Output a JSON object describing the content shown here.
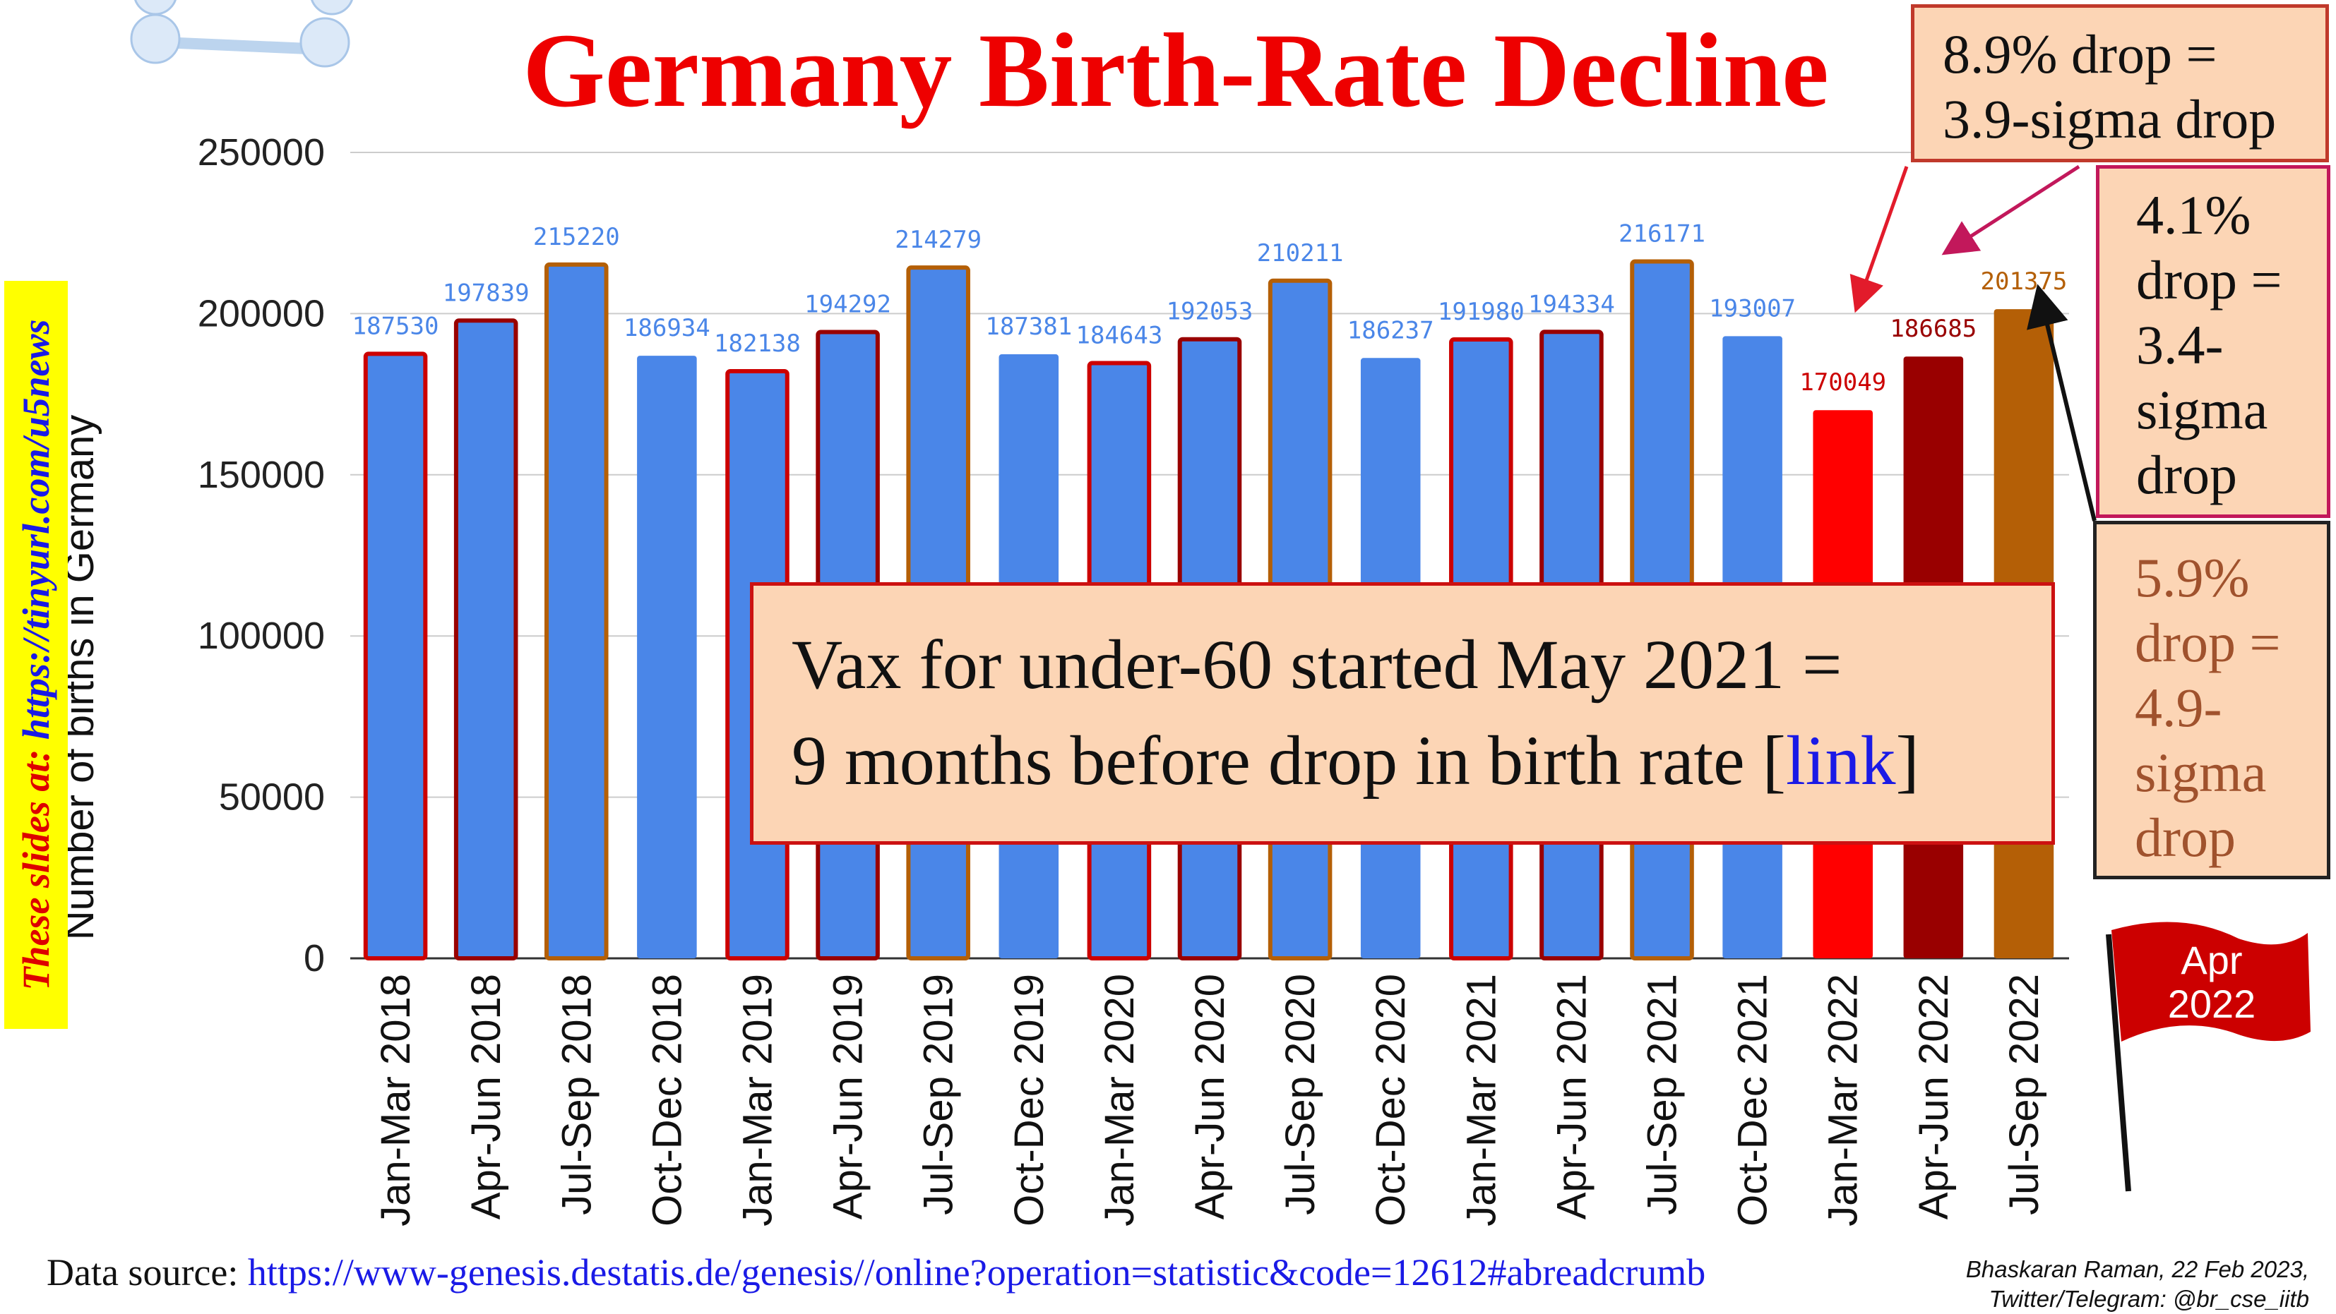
{
  "title": "Germany Birth-Rate Decline",
  "chart_data": {
    "type": "bar",
    "title": "Germany Birth-Rate Decline",
    "xlabel": "",
    "ylabel": "Number of births in Germany",
    "ylim": [
      0,
      250000
    ],
    "yticks": [
      "250000",
      "200000",
      "150000",
      "100000",
      "50000",
      "0"
    ],
    "grid": true,
    "categories": [
      "Jan-Mar 2018",
      "Apr-Jun 2018",
      "Jul-Sep 2018",
      "Oct-Dec 2018",
      "Jan-Mar 2019",
      "Apr-Jun 2019",
      "Jul-Sep 2019",
      "Oct-Dec 2019",
      "Jan-Mar 2020",
      "Apr-Jun 2020",
      "Jul-Sep 2020",
      "Oct-Dec 2020",
      "Jan-Mar 2021",
      "Apr-Jun 2021",
      "Jul-Sep 2021",
      "Oct-Dec 2021",
      "Jan-Mar 2022",
      "Apr-Jun 2022",
      "Jul-Sep 2022"
    ],
    "values": [
      187530,
      197839,
      215220,
      186934,
      182138,
      194292,
      214279,
      187381,
      184643,
      192053,
      210211,
      186237,
      191980,
      194334,
      216171,
      193007,
      170049,
      186685,
      201375
    ],
    "data_labels": [
      "187530",
      "197839",
      "215220",
      "186934",
      "182138",
      "194292",
      "214279",
      "187381",
      "184643",
      "192053",
      "210211",
      "186237",
      "191980",
      "194334",
      "216171",
      "193007",
      "170049",
      "186685",
      "201375"
    ],
    "bar_fill_colors": [
      "#4a86e8",
      "#4a86e8",
      "#4a86e8",
      "#4a86e8",
      "#4a86e8",
      "#4a86e8",
      "#4a86e8",
      "#4a86e8",
      "#4a86e8",
      "#4a86e8",
      "#4a86e8",
      "#4a86e8",
      "#4a86e8",
      "#4a86e8",
      "#4a86e8",
      "#4a86e8",
      "#ff0000",
      "#990000",
      "#b45f06"
    ],
    "bar_border_colors": [
      "#cc0000",
      "#990000",
      "#b45f06",
      "none",
      "#cc0000",
      "#990000",
      "#b45f06",
      "none",
      "#cc0000",
      "#990000",
      "#b45f06",
      "none",
      "#cc0000",
      "#990000",
      "#b45f06",
      "none",
      "none",
      "none",
      "none"
    ],
    "label_colors": [
      "#4a86e8",
      "#4a86e8",
      "#4a86e8",
      "#4a86e8",
      "#4a86e8",
      "#4a86e8",
      "#4a86e8",
      "#4a86e8",
      "#4a86e8",
      "#4a86e8",
      "#4a86e8",
      "#4a86e8",
      "#4a86e8",
      "#4a86e8",
      "#4a86e8",
      "#4a86e8",
      "#cc0000",
      "#990000",
      "#b45f06"
    ]
  },
  "callouts": {
    "drop_1": [
      "8.9% drop =",
      "3.9-sigma drop"
    ],
    "drop_2": [
      "4.1%",
      "drop =",
      "3.4-",
      "sigma",
      "drop"
    ],
    "drop_3": [
      "5.9%",
      "drop =",
      "4.9-",
      "sigma",
      "drop"
    ]
  },
  "vax_note": {
    "line1": "Vax for under-60 started May 2021 =",
    "line2_text": "9 months before drop in birth rate [",
    "link": "link",
    "line2_end": "]"
  },
  "sidebar": {
    "prefix": "These slides at: ",
    "url": "https://tinyurl.com/u5news"
  },
  "footer": {
    "source_label": "Data source: ",
    "source_url": "https://www-genesis.destatis.de/genesis//online?operation=statistic&code=12612#abreadcrumb",
    "credit_line1": "Bhaskaran Raman, 22 Feb 2023,",
    "credit_line2": "Twitter/Telegram: @br_cse_iitb"
  },
  "flag": {
    "line1": "Apr",
    "line2": "2022",
    "color": "#cc0000"
  },
  "colors": {
    "title": "#ee0000",
    "box_fill": "#fcd5b5",
    "sidebar_bg": "#ffff00"
  }
}
